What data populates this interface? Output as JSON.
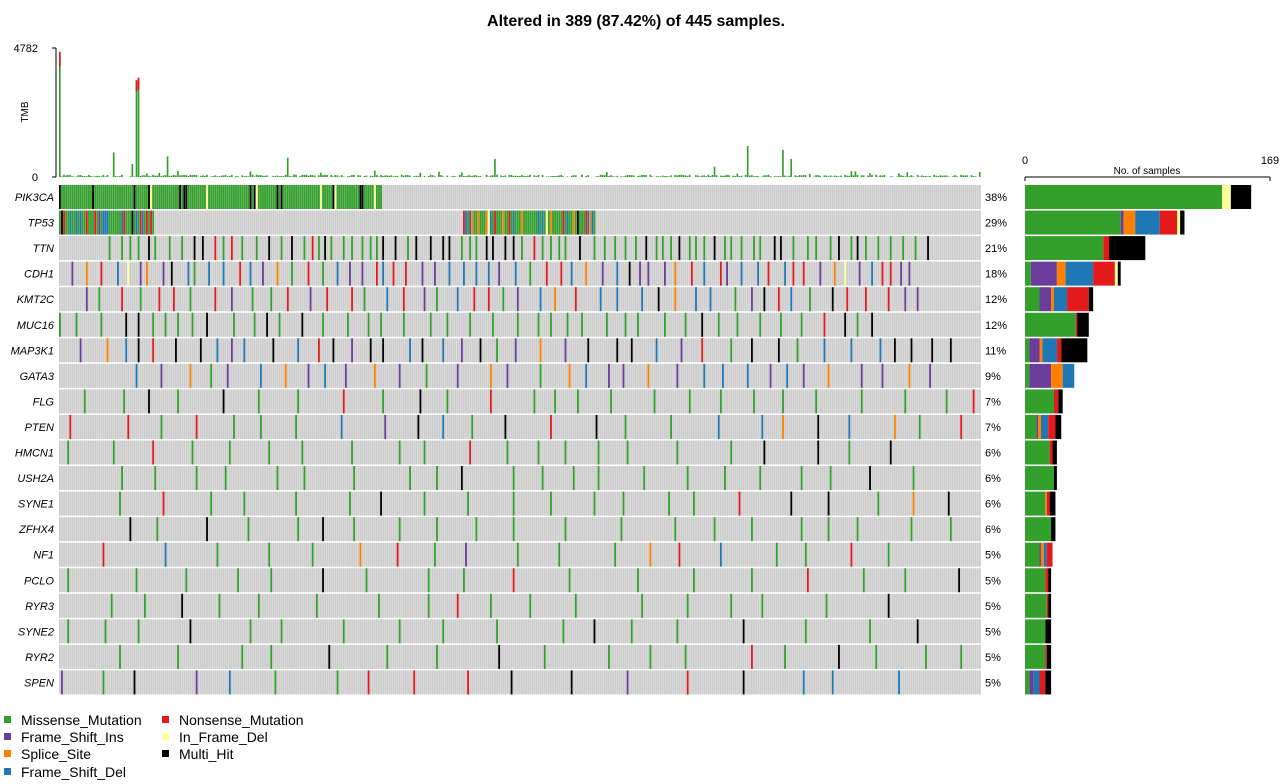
{
  "chart_data": {
    "type": "oncoplot",
    "title": "Altered in 389 (87.42%) of 445 samples.",
    "n_samples": 445,
    "tmb": {
      "ylabel": "TMB",
      "ylim": [
        0,
        4782
      ],
      "ticks": [
        "4782",
        "0"
      ]
    },
    "sample_bar": {
      "xlabel": "No. of samples",
      "xlim": [
        0,
        169
      ],
      "ticks": [
        "0",
        "169"
      ]
    },
    "genes": [
      {
        "name": "PIK3CA",
        "percent": "38%",
        "counts": {
          "Missense_Mutation": 136,
          "Nonsense_Mutation": 0,
          "Frame_Shift_Ins": 0,
          "In_Frame_Del": 6,
          "Splice_Site": 0,
          "Frame_Shift_Del": 0,
          "Multi_Hit": 14
        }
      },
      {
        "name": "TP53",
        "percent": "29%",
        "counts": {
          "Missense_Mutation": 66,
          "Nonsense_Mutation": 12,
          "Frame_Shift_Ins": 2,
          "In_Frame_Del": 2,
          "Splice_Site": 8,
          "Frame_Shift_Del": 17,
          "Multi_Hit": 3
        }
      },
      {
        "name": "TTN",
        "percent": "21%",
        "counts": {
          "Missense_Mutation": 54,
          "Nonsense_Mutation": 4,
          "Frame_Shift_Ins": 0,
          "In_Frame_Del": 0,
          "Splice_Site": 0,
          "Frame_Shift_Del": 0,
          "Multi_Hit": 25
        }
      },
      {
        "name": "CDH1",
        "percent": "18%",
        "counts": {
          "Missense_Mutation": 4,
          "Nonsense_Mutation": 15,
          "Frame_Shift_Ins": 18,
          "In_Frame_Del": 2,
          "Splice_Site": 6,
          "Frame_Shift_Del": 19,
          "Multi_Hit": 2
        }
      },
      {
        "name": "KMT2C",
        "percent": "12%",
        "counts": {
          "Missense_Mutation": 10,
          "Nonsense_Mutation": 15,
          "Frame_Shift_Ins": 8,
          "In_Frame_Del": 0,
          "Splice_Site": 2,
          "Frame_Shift_Del": 9,
          "Multi_Hit": 3
        }
      },
      {
        "name": "MUC16",
        "percent": "12%",
        "counts": {
          "Missense_Mutation": 35,
          "Nonsense_Mutation": 1,
          "Frame_Shift_Ins": 0,
          "In_Frame_Del": 0,
          "Splice_Site": 0,
          "Frame_Shift_Del": 0,
          "Multi_Hit": 8
        }
      },
      {
        "name": "MAP3K1",
        "percent": "11%",
        "counts": {
          "Missense_Mutation": 3,
          "Nonsense_Mutation": 3,
          "Frame_Shift_Ins": 7,
          "In_Frame_Del": 0,
          "Splice_Site": 2,
          "Frame_Shift_Del": 10,
          "Multi_Hit": 18
        }
      },
      {
        "name": "GATA3",
        "percent": "9%",
        "counts": {
          "Missense_Mutation": 3,
          "Nonsense_Mutation": 0,
          "Frame_Shift_Ins": 15,
          "In_Frame_Del": 0,
          "Splice_Site": 8,
          "Frame_Shift_Del": 8,
          "Multi_Hit": 0
        }
      },
      {
        "name": "FLG",
        "percent": "7%",
        "counts": {
          "Missense_Mutation": 20,
          "Nonsense_Mutation": 3,
          "Frame_Shift_Ins": 0,
          "In_Frame_Del": 0,
          "Splice_Site": 0,
          "Frame_Shift_Del": 0,
          "Multi_Hit": 3
        }
      },
      {
        "name": "PTEN",
        "percent": "7%",
        "counts": {
          "Missense_Mutation": 8,
          "Nonsense_Mutation": 5,
          "Frame_Shift_Ins": 1,
          "In_Frame_Del": 0,
          "Splice_Site": 2,
          "Frame_Shift_Del": 5,
          "Multi_Hit": 4
        }
      },
      {
        "name": "HMCN1",
        "percent": "6%",
        "counts": {
          "Missense_Mutation": 17,
          "Nonsense_Mutation": 2,
          "Frame_Shift_Ins": 0,
          "In_Frame_Del": 0,
          "Splice_Site": 0,
          "Frame_Shift_Del": 0,
          "Multi_Hit": 3
        }
      },
      {
        "name": "USH2A",
        "percent": "6%",
        "counts": {
          "Missense_Mutation": 20,
          "Nonsense_Mutation": 0,
          "Frame_Shift_Ins": 0,
          "In_Frame_Del": 0,
          "Splice_Site": 0,
          "Frame_Shift_Del": 0,
          "Multi_Hit": 2
        }
      },
      {
        "name": "SYNE1",
        "percent": "6%",
        "counts": {
          "Missense_Mutation": 14,
          "Nonsense_Mutation": 2,
          "Frame_Shift_Ins": 0,
          "In_Frame_Del": 0,
          "Splice_Site": 1,
          "Frame_Shift_Del": 0,
          "Multi_Hit": 4
        }
      },
      {
        "name": "ZFHX4",
        "percent": "6%",
        "counts": {
          "Missense_Mutation": 18,
          "Nonsense_Mutation": 0,
          "Frame_Shift_Ins": 0,
          "In_Frame_Del": 0,
          "Splice_Site": 0,
          "Frame_Shift_Del": 0,
          "Multi_Hit": 3
        }
      },
      {
        "name": "NF1",
        "percent": "5%",
        "counts": {
          "Missense_Mutation": 10,
          "Nonsense_Mutation": 4,
          "Frame_Shift_Ins": 1,
          "In_Frame_Del": 0,
          "Splice_Site": 2,
          "Frame_Shift_Del": 2,
          "Multi_Hit": 0
        }
      },
      {
        "name": "PCLO",
        "percent": "5%",
        "counts": {
          "Missense_Mutation": 14,
          "Nonsense_Mutation": 2,
          "Frame_Shift_Ins": 0,
          "In_Frame_Del": 0,
          "Splice_Site": 0,
          "Frame_Shift_Del": 0,
          "Multi_Hit": 2
        }
      },
      {
        "name": "RYR3",
        "percent": "5%",
        "counts": {
          "Missense_Mutation": 15,
          "Nonsense_Mutation": 1,
          "Frame_Shift_Ins": 0,
          "In_Frame_Del": 0,
          "Splice_Site": 0,
          "Frame_Shift_Del": 0,
          "Multi_Hit": 2
        }
      },
      {
        "name": "SYNE2",
        "percent": "5%",
        "counts": {
          "Missense_Mutation": 14,
          "Nonsense_Mutation": 0,
          "Frame_Shift_Ins": 0,
          "In_Frame_Del": 0,
          "Splice_Site": 0,
          "Frame_Shift_Del": 0,
          "Multi_Hit": 4
        }
      },
      {
        "name": "RYR2",
        "percent": "5%",
        "counts": {
          "Missense_Mutation": 14,
          "Nonsense_Mutation": 1,
          "Frame_Shift_Ins": 0,
          "In_Frame_Del": 0,
          "Splice_Site": 0,
          "Frame_Shift_Del": 0,
          "Multi_Hit": 3
        }
      },
      {
        "name": "SPEN",
        "percent": "5%",
        "counts": {
          "Missense_Mutation": 3,
          "Nonsense_Mutation": 4,
          "Frame_Shift_Ins": 3,
          "In_Frame_Del": 0,
          "Splice_Site": 0,
          "Frame_Shift_Del": 4,
          "Multi_Hit": 4
        }
      }
    ],
    "legend": [
      {
        "label": "Missense_Mutation",
        "key": "Missense_Mutation"
      },
      {
        "label": "Nonsense_Mutation",
        "key": "Nonsense_Mutation"
      },
      {
        "label": "Frame_Shift_Ins",
        "key": "Frame_Shift_Ins"
      },
      {
        "label": "In_Frame_Del",
        "key": "In_Frame_Del"
      },
      {
        "label": "Splice_Site",
        "key": "Splice_Site"
      },
      {
        "label": "Multi_Hit",
        "key": "Multi_Hit"
      },
      {
        "label": "Frame_Shift_Del",
        "key": "Frame_Shift_Del"
      }
    ],
    "bar_stack_order": [
      "Missense_Mutation",
      "Frame_Shift_Ins",
      "Splice_Site",
      "Frame_Shift_Del",
      "Nonsense_Mutation",
      "In_Frame_Del",
      "Multi_Hit"
    ],
    "colors": {
      "Missense_Mutation": "#33a02c",
      "Nonsense_Mutation": "#e31a1c",
      "Frame_Shift_Ins": "#6a3d9a",
      "In_Frame_Del": "#ffff99",
      "Splice_Site": "#ff7f00",
      "Multi_Hit": "#000000",
      "Frame_Shift_Del": "#1f78b4",
      "background": "#cccccc",
      "tmb_bar": "#33a02c"
    }
  }
}
